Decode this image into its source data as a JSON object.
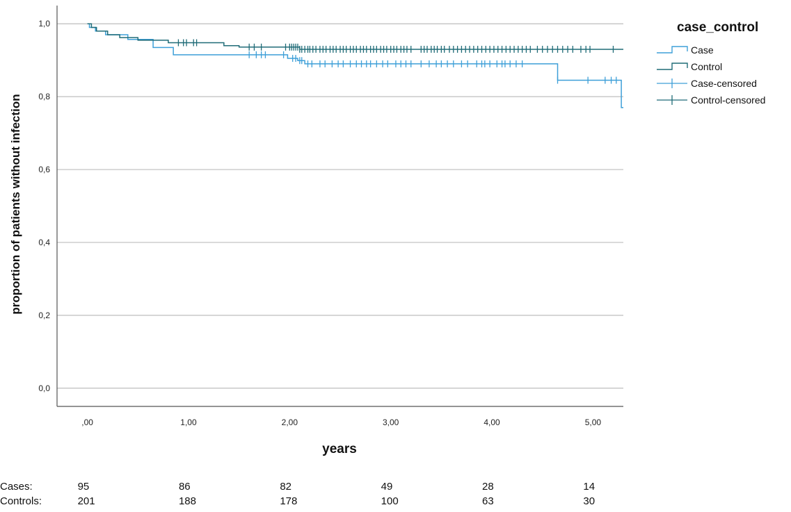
{
  "chart_data": {
    "type": "line",
    "subtype": "kaplan-meier",
    "xlabel": "years",
    "ylabel": "proportion of patients without infection",
    "xlim": [
      -0.3,
      5.3
    ],
    "ylim": [
      -0.05,
      1.05
    ],
    "x_ticks": [
      {
        "value": 0,
        "label": ",00"
      },
      {
        "value": 1,
        "label": "1,00"
      },
      {
        "value": 2,
        "label": "2,00"
      },
      {
        "value": 3,
        "label": "3,00"
      },
      {
        "value": 4,
        "label": "4,00"
      },
      {
        "value": 5,
        "label": "5,00"
      }
    ],
    "y_ticks": [
      {
        "value": 0.0,
        "label": "0,0"
      },
      {
        "value": 0.2,
        "label": "0,2"
      },
      {
        "value": 0.4,
        "label": "0,4"
      },
      {
        "value": 0.6,
        "label": "0,6"
      },
      {
        "value": 0.8,
        "label": "0,8"
      },
      {
        "value": 1.0,
        "label": "1,0"
      }
    ],
    "grid": "horizontal",
    "legend": {
      "title": "case_control",
      "placement": "right",
      "entries": [
        {
          "label": "Case",
          "kind": "step",
          "series": 0
        },
        {
          "label": "Control",
          "kind": "step",
          "series": 1
        },
        {
          "label": "Case-censored",
          "kind": "censor",
          "series": 0
        },
        {
          "label": "Control-censored",
          "kind": "censor",
          "series": 1
        }
      ]
    },
    "series": [
      {
        "name": "Case",
        "color": "#3d9fd8",
        "steps": [
          [
            0,
            1.0
          ],
          [
            0.02,
            0.99
          ],
          [
            0.08,
            0.98
          ],
          [
            0.18,
            0.97
          ],
          [
            0.4,
            0.957
          ],
          [
            0.65,
            0.935
          ],
          [
            0.85,
            0.915
          ],
          [
            1.98,
            0.905
          ],
          [
            2.08,
            0.899
          ],
          [
            2.15,
            0.89
          ],
          [
            4.65,
            0.845
          ],
          [
            5.28,
            0.77
          ]
        ],
        "end": 5.3,
        "censored": [
          1.6,
          1.67,
          1.72,
          1.76,
          1.94,
          2.03,
          2.06,
          2.1,
          2.12,
          2.18,
          2.22,
          2.3,
          2.35,
          2.42,
          2.48,
          2.53,
          2.6,
          2.66,
          2.71,
          2.76,
          2.8,
          2.86,
          2.92,
          2.97,
          3.05,
          3.1,
          3.15,
          3.2,
          3.3,
          3.38,
          3.45,
          3.5,
          3.56,
          3.62,
          3.7,
          3.76,
          3.85,
          3.9,
          3.93,
          3.98,
          4.05,
          4.1,
          4.13,
          4.18,
          4.24,
          4.3,
          4.65,
          4.95,
          5.12,
          5.18,
          5.23
        ]
      },
      {
        "name": "Control",
        "color": "#1f6b77",
        "steps": [
          [
            0,
            1.0
          ],
          [
            0.04,
            0.99
          ],
          [
            0.09,
            0.98
          ],
          [
            0.2,
            0.97
          ],
          [
            0.32,
            0.962
          ],
          [
            0.5,
            0.955
          ],
          [
            0.8,
            0.948
          ],
          [
            1.35,
            0.94
          ],
          [
            1.5,
            0.936
          ],
          [
            2.1,
            0.93
          ]
        ],
        "end": 5.3,
        "censored": [
          0.9,
          0.95,
          0.98,
          1.05,
          1.08,
          1.6,
          1.65,
          1.72,
          1.96,
          2.0,
          2.02,
          2.04,
          2.06,
          2.08,
          2.1,
          2.12,
          2.15,
          2.18,
          2.2,
          2.23,
          2.26,
          2.3,
          2.33,
          2.36,
          2.4,
          2.43,
          2.46,
          2.5,
          2.53,
          2.56,
          2.6,
          2.63,
          2.66,
          2.7,
          2.73,
          2.76,
          2.8,
          2.83,
          2.86,
          2.9,
          2.93,
          2.96,
          3.0,
          3.03,
          3.06,
          3.1,
          3.13,
          3.16,
          3.2,
          3.3,
          3.33,
          3.36,
          3.4,
          3.43,
          3.46,
          3.5,
          3.53,
          3.58,
          3.62,
          3.66,
          3.7,
          3.74,
          3.78,
          3.82,
          3.86,
          3.9,
          3.94,
          3.98,
          4.02,
          4.06,
          4.1,
          4.14,
          4.18,
          4.22,
          4.26,
          4.3,
          4.34,
          4.38,
          4.45,
          4.5,
          4.55,
          4.6,
          4.65,
          4.7,
          4.75,
          4.8,
          4.88,
          4.93,
          4.97,
          5.2
        ]
      }
    ]
  },
  "risk_table": {
    "rows": [
      {
        "label": "Cases:",
        "values": [
          "95",
          "86",
          "82",
          "49",
          "28",
          "14"
        ]
      },
      {
        "label": "Controls:",
        "values": [
          "201",
          "188",
          "178",
          "100",
          "63",
          "30"
        ]
      }
    ]
  }
}
